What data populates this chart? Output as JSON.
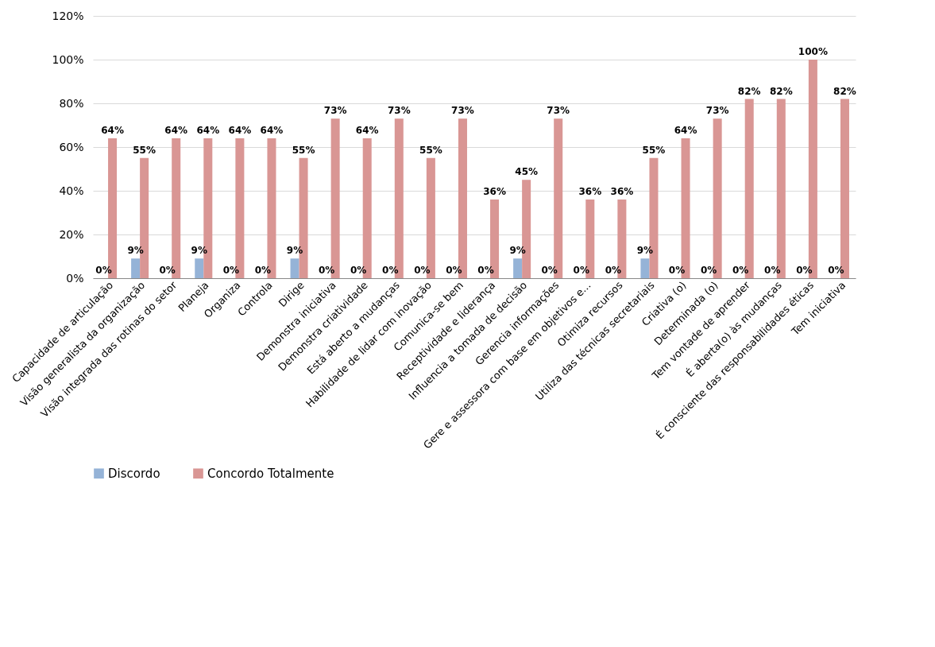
{
  "chart_data": {
    "type": "bar",
    "categories": [
      "Capacidade de articulação",
      "Visão generalista da organização",
      "Visão integrada das rotinas do setor",
      "Planeja",
      "Organiza",
      "Controla",
      "Dirige",
      "Demonstra iniciativa",
      "Demonstra criatividade",
      "Está aberto a mudanças",
      "Habilidade de lidar com inovação",
      "Comunica-se bem",
      "Receptividade e liderança",
      "Influencia a tomada de decisão",
      "Gerencia informações",
      "Gere e assessora com base em objetivos e...",
      "Otimiza recursos",
      "Utiliza das técnicas secretariais",
      "Criativa (o)",
      "Determinada (o)",
      "Tem vontade de aprender",
      "É aberta(o) às mudanças",
      "É consciente das responsabilidades éticas",
      "Tem iniciativa"
    ],
    "series": [
      {
        "name": "Discordo",
        "color": "#95b3d7",
        "values": [
          0,
          9,
          0,
          9,
          0,
          0,
          9,
          0,
          0,
          0,
          0,
          0,
          0,
          9,
          0,
          0,
          0,
          9,
          0,
          0,
          0,
          0,
          0,
          0
        ],
        "value_labels": [
          "0%",
          "9%",
          "0%",
          "9%",
          "0%",
          "0%",
          "9%",
          "0%",
          "0%",
          "0%",
          "0%",
          "0%",
          "0%",
          "9%",
          "0%",
          "0%",
          "0%",
          "9%",
          "0%",
          "0%",
          "0%",
          "0%",
          "0%",
          "0%"
        ]
      },
      {
        "name": "Concordo Totalmente",
        "color": "#d99694",
        "values": [
          64,
          55,
          64,
          64,
          64,
          64,
          55,
          73,
          64,
          73,
          55,
          73,
          36,
          45,
          73,
          36,
          36,
          55,
          64,
          73,
          82,
          82,
          100,
          82
        ],
        "value_labels": [
          "64%",
          "55%",
          "64%",
          "64%",
          "64%",
          "64%",
          "55%",
          "73%",
          "64%",
          "73%",
          "55%",
          "73%",
          "36%",
          "45%",
          "73%",
          "36%",
          "36%",
          "55%",
          "64%",
          "73%",
          "82%",
          "82%",
          "100%",
          "82%"
        ]
      }
    ],
    "ylim": [
      0,
      120
    ],
    "yticks": [
      {
        "value": 0,
        "label": "0%"
      },
      {
        "value": 20,
        "label": "20%"
      },
      {
        "value": 40,
        "label": "40%"
      },
      {
        "value": 60,
        "label": "60%"
      },
      {
        "value": 80,
        "label": "80%"
      },
      {
        "value": 100,
        "label": "100%"
      },
      {
        "value": 120,
        "label": "120%"
      }
    ],
    "grid": "y",
    "legend": "bottom"
  }
}
